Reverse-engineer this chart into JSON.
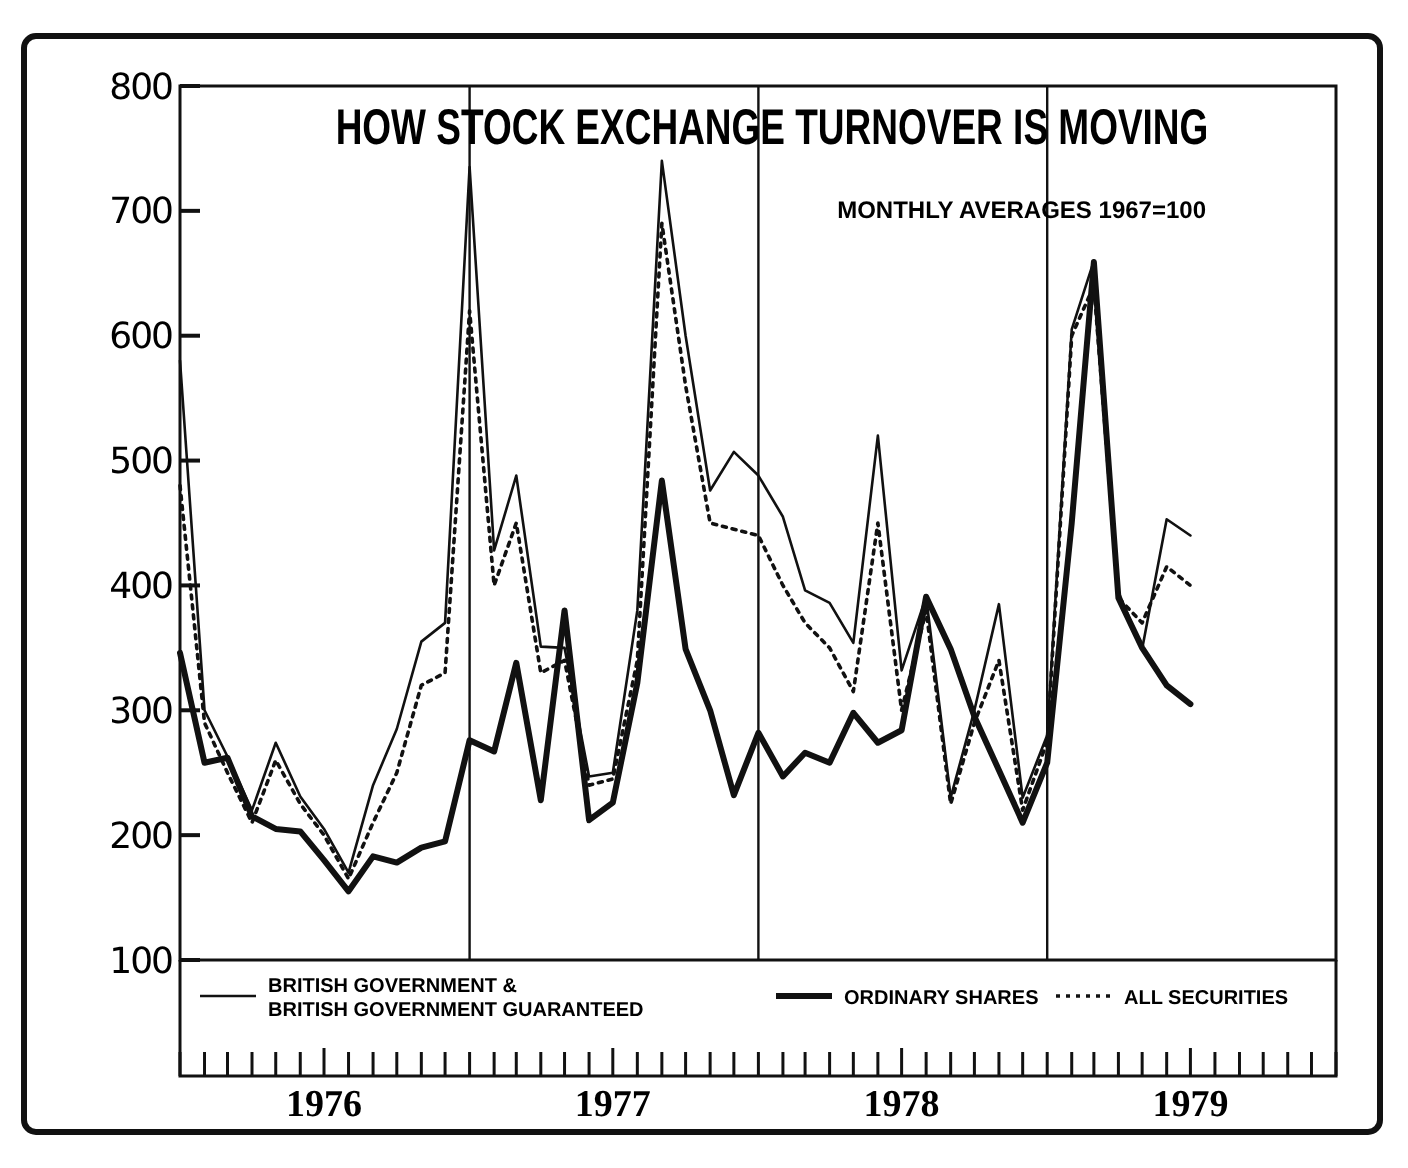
{
  "chart_data": {
    "type": "line",
    "title": "HOW STOCK EXCHANGE TURNOVER IS MOVING",
    "subtitle": "MONTHLY AVERAGES 1967=100",
    "x": [
      "1976-01",
      "1976-02",
      "1976-03",
      "1976-04",
      "1976-05",
      "1976-06",
      "1976-07",
      "1976-08",
      "1976-09",
      "1976-10",
      "1976-11",
      "1976-12",
      "1977-01",
      "1977-02",
      "1977-03",
      "1977-04",
      "1977-05",
      "1977-06",
      "1977-07",
      "1977-08",
      "1977-09",
      "1977-10",
      "1977-11",
      "1977-12",
      "1978-01",
      "1978-02",
      "1978-03",
      "1978-04",
      "1978-05",
      "1978-06",
      "1978-07",
      "1978-08",
      "1978-09",
      "1978-10",
      "1978-11",
      "1978-12",
      "1979-01",
      "1979-02",
      "1979-03",
      "1979-04",
      "1979-05",
      "1979-06",
      "1979-07"
    ],
    "series": [
      {
        "name": "BRITISH GOVERNMENT & BRITISH GOVERNMENT GUARANTEED",
        "color": "#111111",
        "line_style": "solid",
        "values": [
          580,
          300,
          263,
          220,
          274,
          231,
          205,
          170,
          240,
          285,
          355,
          370,
          735,
          428,
          488,
          351,
          350,
          247,
          250,
          380,
          740,
          600,
          476,
          507,
          488,
          455,
          396,
          386,
          354,
          520,
          332,
          391,
          230,
          300,
          385,
          230,
          280,
          605,
          660,
          395,
          349,
          453,
          440
        ]
      },
      {
        "name": "ORDINARY SHARES",
        "color": "#111111",
        "line_style": "solid",
        "values": [
          346,
          258,
          262,
          215,
          205,
          203,
          180,
          155,
          183,
          178,
          190,
          195,
          276,
          267,
          338,
          228,
          380,
          212,
          226,
          322,
          484,
          349,
          300,
          232,
          282,
          247,
          266,
          258,
          298,
          274,
          284,
          391,
          349,
          295,
          252,
          210,
          258,
          450,
          659,
          390,
          350,
          320,
          305
        ]
      },
      {
        "name": "ALL SECURITIES",
        "color": "#111111",
        "line_style": "dotted",
        "values": [
          480,
          290,
          250,
          210,
          260,
          225,
          200,
          165,
          210,
          250,
          320,
          330,
          620,
          400,
          450,
          330,
          340,
          240,
          245,
          340,
          690,
          560,
          450,
          445,
          440,
          400,
          370,
          350,
          315,
          450,
          300,
          380,
          225,
          290,
          340,
          220,
          275,
          600,
          640,
          390,
          370,
          415,
          400
        ]
      }
    ],
    "xlim": [
      "1976-01",
      "1980-01"
    ],
    "xticks": [
      {
        "value": "1976-01",
        "label": null
      },
      {
        "value": "1976-02",
        "label": null
      },
      {
        "value": "1976-03",
        "label": null
      },
      {
        "value": "1976-04",
        "label": null
      },
      {
        "value": "1976-05",
        "label": null
      },
      {
        "value": "1976-06",
        "label": null
      },
      {
        "value": "1976-07",
        "label": "1976"
      },
      {
        "value": "1976-08",
        "label": null
      },
      {
        "value": "1976-09",
        "label": null
      },
      {
        "value": "1976-10",
        "label": null
      },
      {
        "value": "1976-11",
        "label": null
      },
      {
        "value": "1976-12",
        "label": null
      },
      {
        "value": "1977-01",
        "label": null
      },
      {
        "value": "1977-02",
        "label": null
      },
      {
        "value": "1977-03",
        "label": null
      },
      {
        "value": "1977-04",
        "label": null
      },
      {
        "value": "1977-05",
        "label": null
      },
      {
        "value": "1977-06",
        "label": null
      },
      {
        "value": "1977-07",
        "label": "1977"
      },
      {
        "value": "1977-08",
        "label": null
      },
      {
        "value": "1977-09",
        "label": null
      },
      {
        "value": "1977-10",
        "label": null
      },
      {
        "value": "1977-11",
        "label": null
      },
      {
        "value": "1977-12",
        "label": null
      },
      {
        "value": "1978-01",
        "label": null
      },
      {
        "value": "1978-02",
        "label": null
      },
      {
        "value": "1978-03",
        "label": null
      },
      {
        "value": "1978-04",
        "label": null
      },
      {
        "value": "1978-05",
        "label": null
      },
      {
        "value": "1978-06",
        "label": null
      },
      {
        "value": "1978-07",
        "label": "1978"
      },
      {
        "value": "1978-08",
        "label": null
      },
      {
        "value": "1978-09",
        "label": null
      },
      {
        "value": "1978-10",
        "label": null
      },
      {
        "value": "1978-11",
        "label": null
      },
      {
        "value": "1978-12",
        "label": null
      },
      {
        "value": "1979-01",
        "label": null
      },
      {
        "value": "1979-02",
        "label": null
      },
      {
        "value": "1979-03",
        "label": null
      },
      {
        "value": "1979-04",
        "label": null
      },
      {
        "value": "1979-05",
        "label": null
      },
      {
        "value": "1979-06",
        "label": null
      },
      {
        "value": "1979-07",
        "label": "1979"
      },
      {
        "value": "1979-08",
        "label": null
      },
      {
        "value": "1979-09",
        "label": null
      },
      {
        "value": "1979-10",
        "label": null
      },
      {
        "value": "1979-11",
        "label": null
      },
      {
        "value": "1979-12",
        "label": null
      },
      {
        "value": "1980-01",
        "label": null
      }
    ],
    "ylim": [
      100,
      800
    ],
    "yticks": [
      100,
      200,
      300,
      400,
      500,
      600,
      700,
      800
    ],
    "ref_lines": [
      {
        "axis": "x",
        "value": "1977-01",
        "color": "#111111"
      },
      {
        "axis": "x",
        "value": "1978-01",
        "color": "#111111"
      },
      {
        "axis": "x",
        "value": "1979-01",
        "color": "#111111"
      }
    ],
    "grid": false,
    "legend": "bottom",
    "marker": "none"
  }
}
